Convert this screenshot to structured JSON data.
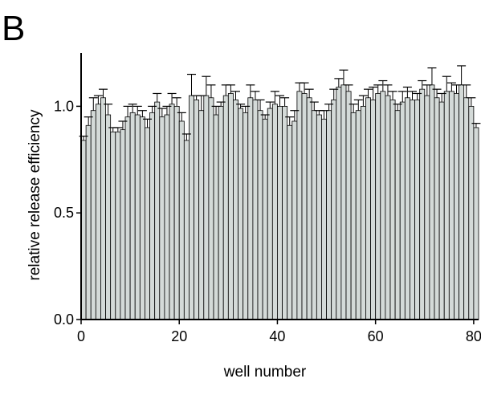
{
  "panel_label": "B",
  "chart_data": {
    "type": "bar",
    "title": "",
    "xlabel": "well number",
    "ylabel": "relative release efficiency",
    "x_ticks": [
      "0",
      "20",
      "40",
      "60",
      "80"
    ],
    "y_ticks": [
      "0.0",
      "0.5",
      "1.0"
    ],
    "xlim": [
      0,
      81
    ],
    "ylim": [
      0,
      1.25
    ],
    "bar_color": "#d4dad8",
    "grid": false,
    "error_bars": "one-sided (upper)",
    "wells": [
      1,
      2,
      3,
      4,
      5,
      6,
      7,
      8,
      9,
      10,
      11,
      12,
      13,
      14,
      15,
      16,
      17,
      18,
      19,
      20,
      21,
      22,
      23,
      24,
      25,
      26,
      27,
      28,
      29,
      30,
      31,
      32,
      33,
      34,
      35,
      36,
      37,
      38,
      39,
      40,
      41,
      42,
      43,
      44,
      45,
      46,
      47,
      48,
      49,
      50,
      51,
      52,
      53,
      54,
      55,
      56,
      57,
      58,
      59,
      60,
      61,
      62,
      63,
      64,
      65,
      66,
      67,
      68,
      69,
      70,
      71,
      72,
      73,
      74,
      75,
      76,
      77,
      78,
      79,
      80,
      81
    ],
    "values": [
      0.84,
      0.91,
      0.98,
      1.01,
      1.04,
      0.96,
      0.88,
      0.88,
      0.89,
      0.95,
      0.97,
      0.96,
      0.95,
      0.9,
      0.97,
      1.02,
      0.95,
      0.96,
      1.01,
      1.0,
      0.93,
      0.84,
      1.05,
      1.03,
      0.98,
      1.05,
      1.04,
      0.96,
      1.0,
      1.05,
      1.06,
      1.03,
      0.99,
      0.97,
      1.04,
      1.03,
      0.98,
      0.94,
      0.99,
      1.01,
      1.0,
      1.0,
      0.91,
      0.93,
      1.07,
      1.06,
      1.04,
      0.98,
      0.96,
      0.94,
      0.98,
      1.03,
      1.09,
      1.1,
      1.07,
      0.97,
      0.98,
      1.0,
      1.04,
      1.03,
      1.06,
      1.07,
      1.05,
      1.03,
      0.98,
      1.02,
      1.04,
      1.03,
      1.03,
      1.08,
      1.05,
      1.1,
      1.04,
      1.02,
      1.07,
      1.07,
      1.06,
      1.1,
      1.04,
      1.0,
      0.9
    ],
    "errors": [
      0.02,
      0.04,
      0.06,
      0.04,
      0.04,
      0.05,
      0.02,
      0.02,
      0.04,
      0.05,
      0.04,
      0.04,
      0.03,
      0.04,
      0.03,
      0.04,
      0.04,
      0.04,
      0.05,
      0.04,
      0.04,
      0.03,
      0.1,
      0.02,
      0.07,
      0.09,
      0.06,
      0.04,
      0.02,
      0.05,
      0.04,
      0.04,
      0.02,
      0.03,
      0.06,
      0.04,
      0.05,
      0.02,
      0.03,
      0.06,
      0.05,
      0.04,
      0.04,
      0.05,
      0.04,
      0.05,
      0.04,
      0.04,
      0.02,
      0.04,
      0.03,
      0.05,
      0.04,
      0.07,
      0.03,
      0.04,
      0.05,
      0.05,
      0.04,
      0.06,
      0.04,
      0.05,
      0.05,
      0.04,
      0.03,
      0.05,
      0.05,
      0.04,
      0.03,
      0.04,
      0.05,
      0.08,
      0.04,
      0.04,
      0.07,
      0.04,
      0.04,
      0.09,
      0.06,
      0.04,
      0.02
    ]
  }
}
